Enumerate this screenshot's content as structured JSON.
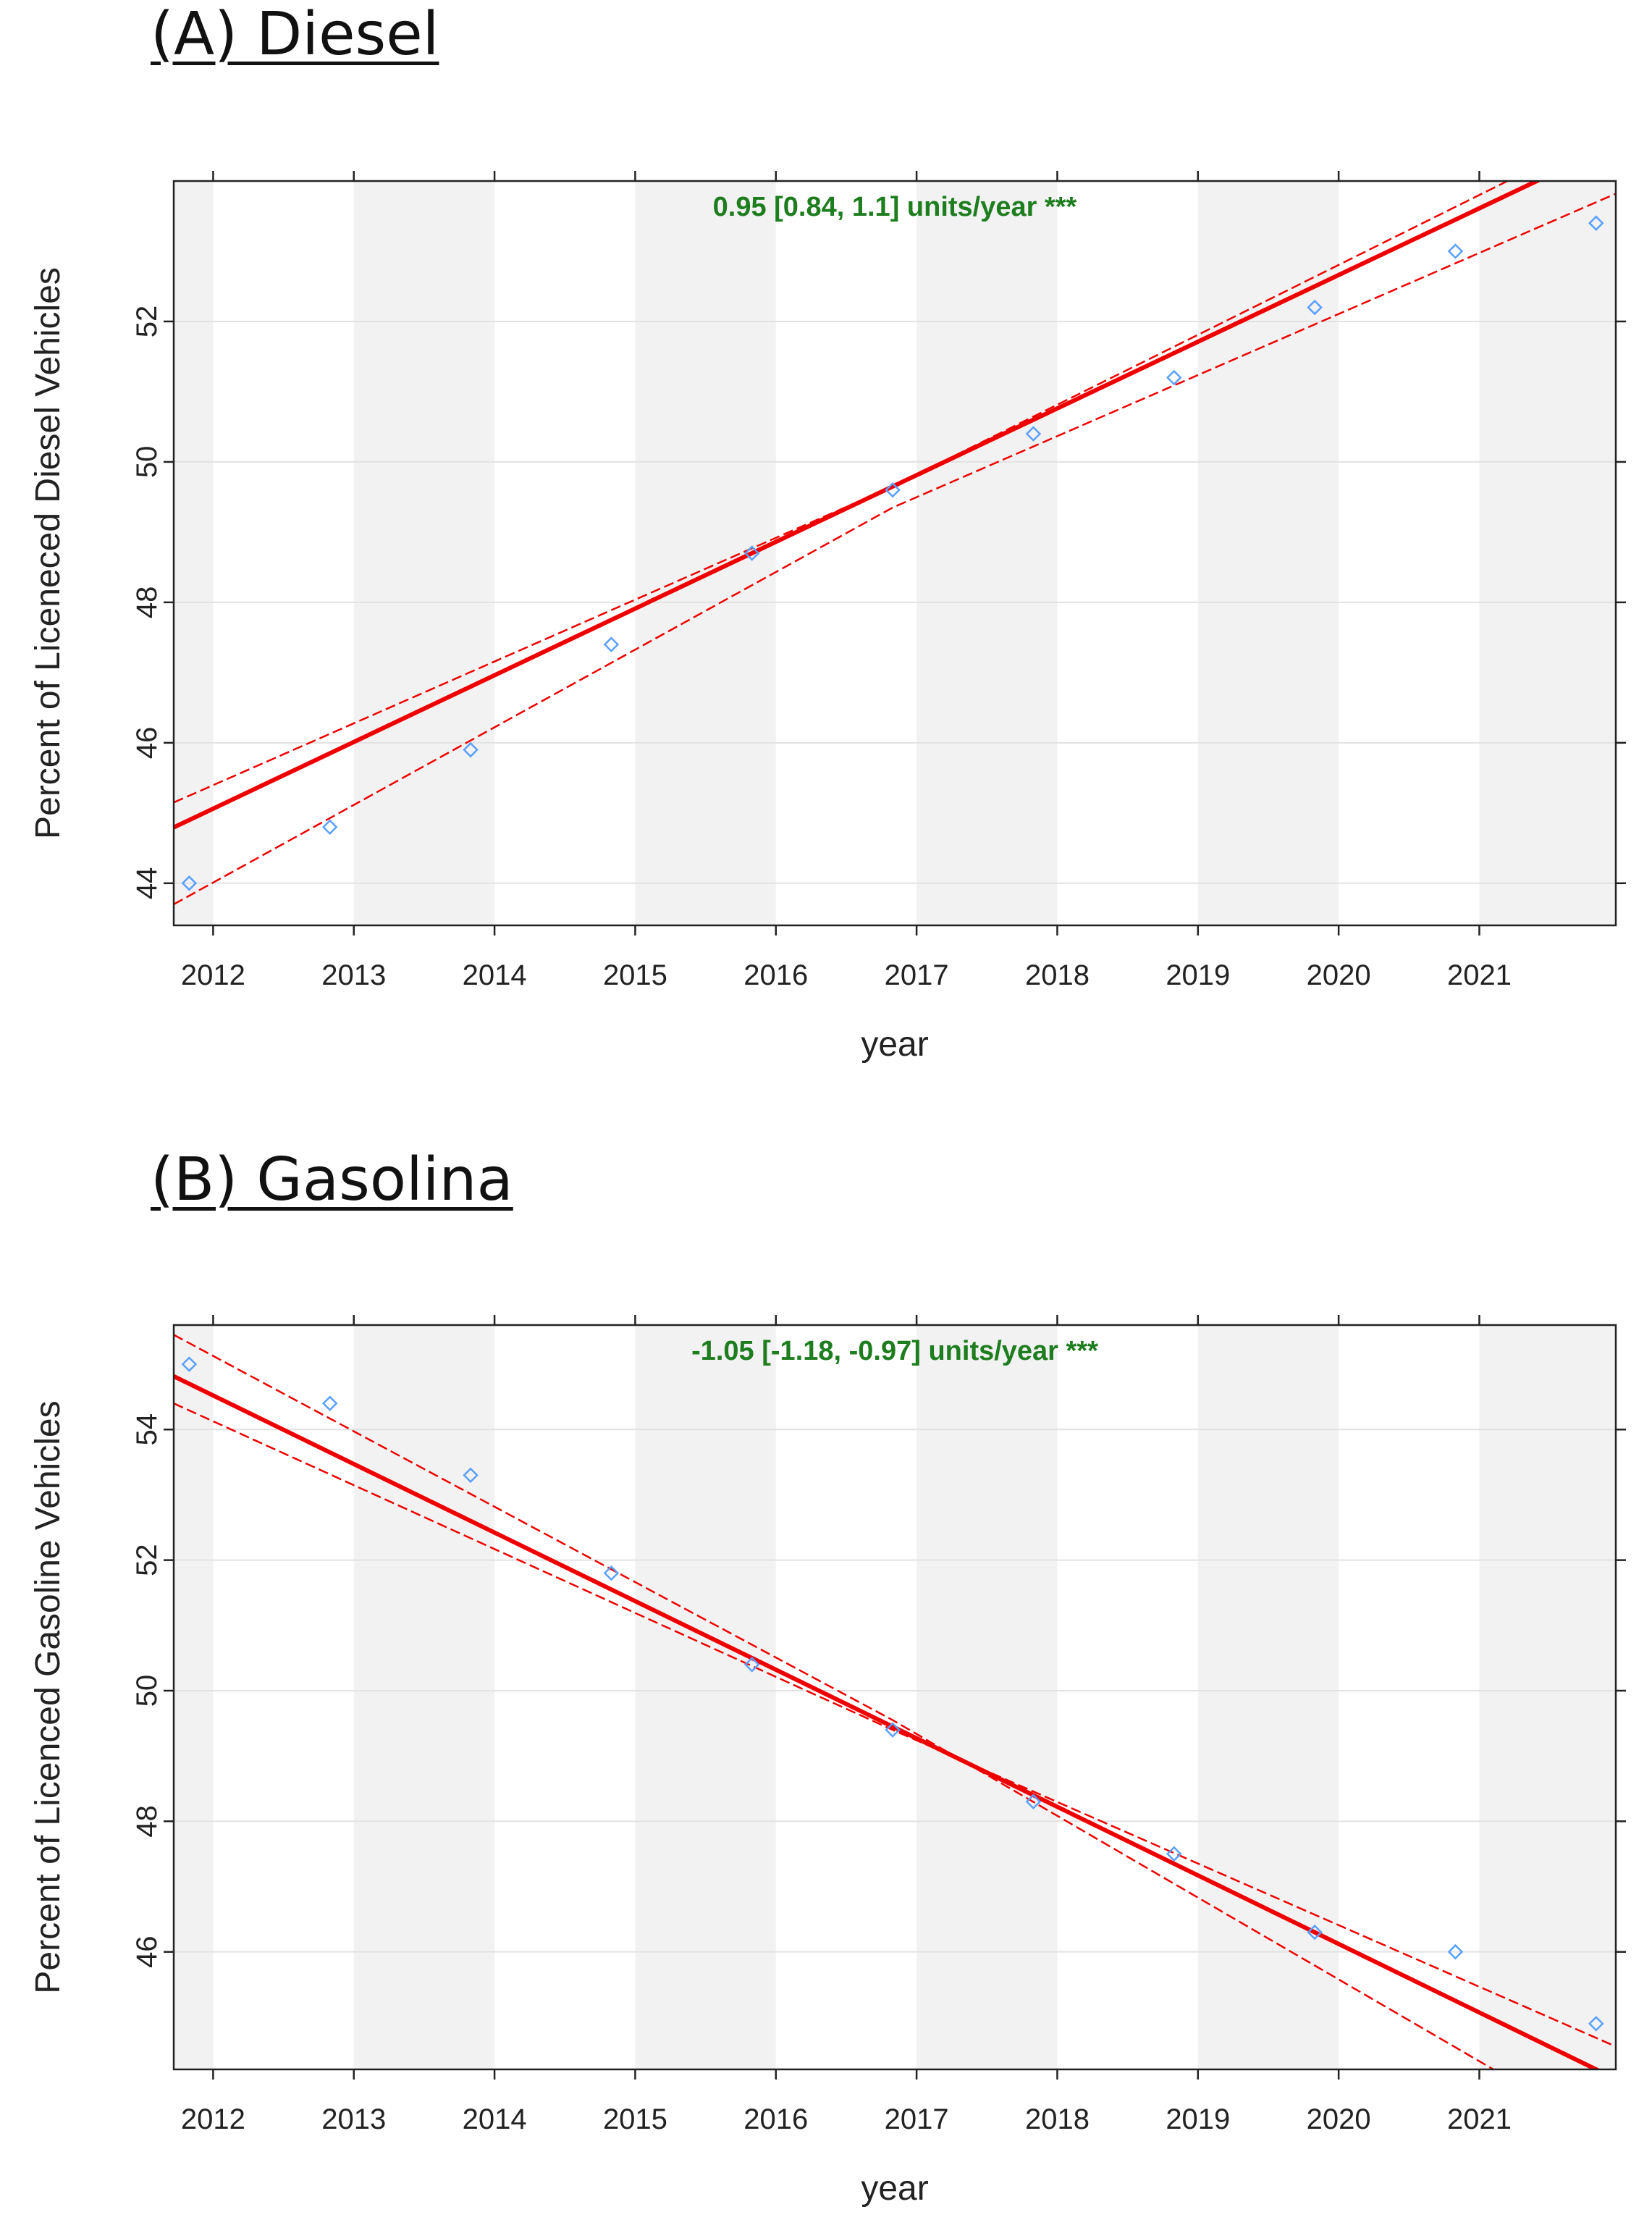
{
  "colors": {
    "trend": "#ee0000",
    "points": "#5aa0ff",
    "annotation": "#1e7d1e",
    "band": "#f2f2f2",
    "grid": "#e2e2e2"
  },
  "chart_data": [
    {
      "type": "scatter",
      "title": "(A) Diesel",
      "xlabel": "year",
      "ylabel": "Percent of Liceneced Diesel Vehicles",
      "annotation": "0.95 [0.84, 1.1] units/year ***",
      "xlim": [
        2011.72,
        2021.97
      ],
      "ylim": [
        43.4,
        54.0
      ],
      "x_ticks": [
        2012,
        2013,
        2014,
        2015,
        2016,
        2017,
        2018,
        2019,
        2020,
        2021
      ],
      "y_ticks": [
        44,
        46,
        48,
        50,
        52
      ],
      "x": [
        2011.83,
        2012.83,
        2013.83,
        2014.83,
        2015.83,
        2016.83,
        2017.83,
        2018.83,
        2019.83,
        2020.83,
        2021.83
      ],
      "y": [
        44.0,
        44.8,
        45.9,
        47.4,
        48.7,
        49.6,
        50.4,
        51.2,
        52.2,
        53.0,
        53.4
      ],
      "trend": {
        "slope": 0.95,
        "x0": 2016.83,
        "y0": 49.65
      },
      "ci_lower": [
        [
          2011.72,
          43.7
        ],
        [
          2016.83,
          49.35
        ],
        [
          2021.97,
          53.82
        ]
      ],
      "ci_upper": [
        [
          2011.72,
          45.15
        ],
        [
          2016.83,
          49.65
        ],
        [
          2021.2,
          54.0
        ]
      ]
    },
    {
      "type": "scatter",
      "title": "(B) Gasolina",
      "xlabel": "year",
      "ylabel": "Percent of Licenced Gasoline  Vehicles",
      "annotation": "-1.05 [-1.18, -0.97] units/year ***",
      "xlim": [
        2011.72,
        2021.97
      ],
      "ylim": [
        44.2,
        55.6
      ],
      "x_ticks": [
        2012,
        2013,
        2014,
        2015,
        2016,
        2017,
        2018,
        2019,
        2020,
        2021
      ],
      "y_ticks": [
        46,
        48,
        50,
        52,
        54
      ],
      "x": [
        2011.83,
        2012.83,
        2013.83,
        2014.83,
        2015.83,
        2016.83,
        2017.83,
        2018.83,
        2019.83,
        2020.83,
        2021.83
      ],
      "y": [
        55.0,
        54.4,
        53.3,
        51.8,
        50.4,
        49.4,
        48.3,
        47.5,
        46.3,
        46.0,
        44.9
      ],
      "trend": {
        "slope": -1.05,
        "x0": 2016.83,
        "y0": 49.45
      },
      "ci_lower": [
        [
          2011.72,
          54.4
        ],
        [
          2016.83,
          49.4
        ],
        [
          2021.97,
          44.55
        ]
      ],
      "ci_upper": [
        [
          2011.72,
          55.45
        ],
        [
          2016.83,
          49.55
        ],
        [
          2021.1,
          44.2
        ]
      ]
    }
  ]
}
